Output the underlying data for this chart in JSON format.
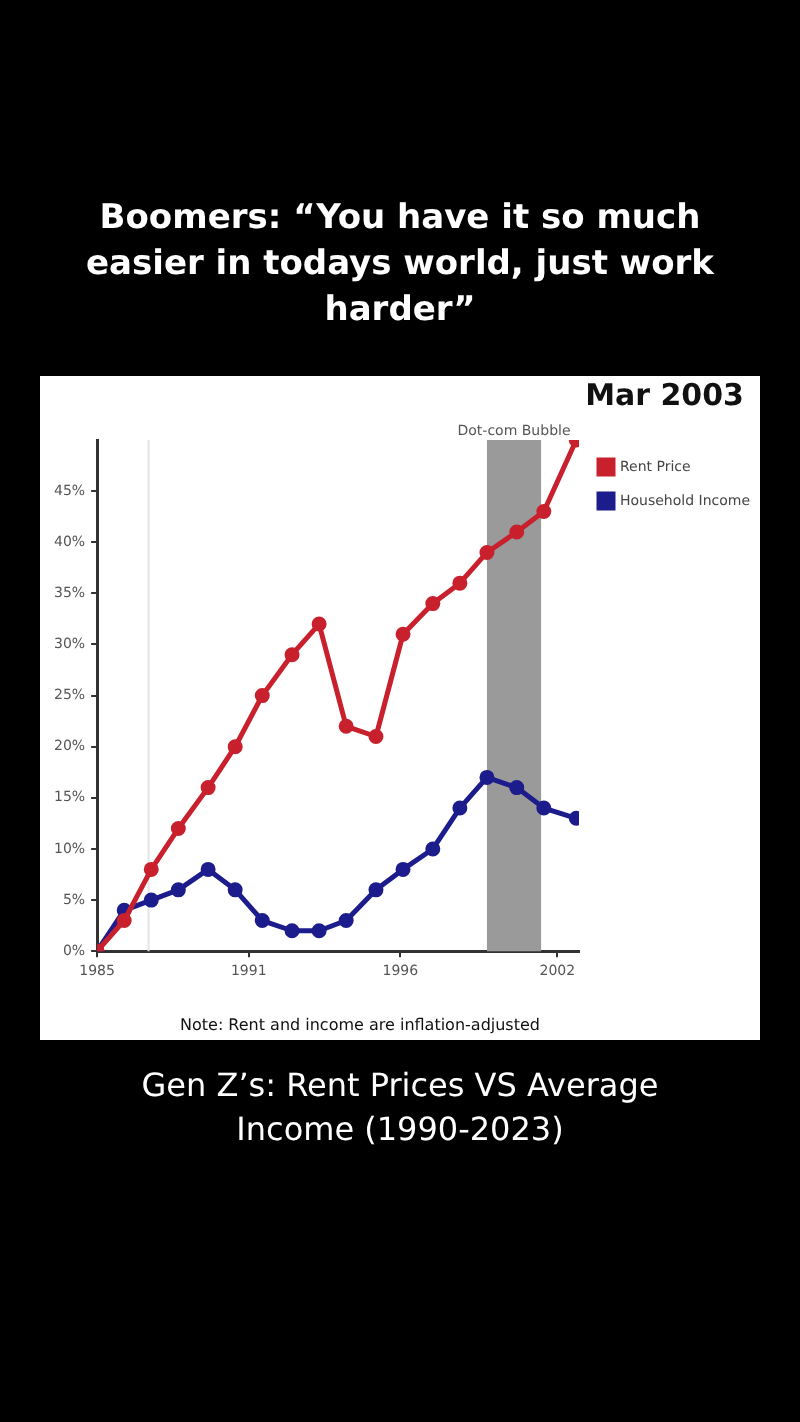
{
  "chart_data": {
    "type": "line",
    "title": "Boomers: “You have it so much easier in todays world, just work harder”",
    "subtitle": "Gen Z’s: Rent Prices VS Average Income (1990-2023)",
    "annotations": [
      "Mar 2003",
      "Note: Rent and income are inflation-adjusted"
    ],
    "x": [
      1985,
      1986,
      1987,
      1988,
      1989.1,
      1990.1,
      1991.1,
      1992.2,
      1993.2,
      1994.2,
      1995.3,
      1996.3,
      1997.4,
      1998.4,
      1999.4,
      2000.5,
      2001.5,
      2002.7
    ],
    "series": [
      {
        "name": "Rent Price",
        "color": "#c8202c",
        "values": [
          0,
          3,
          8,
          12,
          16,
          20,
          25,
          29,
          32,
          22,
          21,
          31,
          34,
          36,
          39,
          41,
          43,
          50
        ]
      },
      {
        "name": "Household Income",
        "color": "#1c1c8c",
        "values": [
          0,
          4,
          5,
          6,
          8,
          6,
          3,
          2,
          2,
          3,
          6,
          8,
          10,
          14,
          17,
          16,
          14,
          13
        ]
      }
    ],
    "xlim": [
      1985,
      2002.8
    ],
    "xticks": [
      {
        "value": 1985,
        "label": "1985"
      },
      {
        "value": 1990.6,
        "label": "1991"
      },
      {
        "value": 1996.2,
        "label": "1996"
      },
      {
        "value": 2002,
        "label": "2002"
      }
    ],
    "ylim": [
      0,
      50
    ],
    "yticks": [
      {
        "value": 0,
        "label": "0%"
      },
      {
        "value": 5,
        "label": "5%"
      },
      {
        "value": 10,
        "label": "10%"
      },
      {
        "value": 15,
        "label": "15%"
      },
      {
        "value": 20,
        "label": "20%"
      },
      {
        "value": 25,
        "label": "25%"
      },
      {
        "value": 30,
        "label": "30%"
      },
      {
        "value": 35,
        "label": "35%"
      },
      {
        "value": 40,
        "label": "40%"
      },
      {
        "value": 45,
        "label": "45%"
      }
    ],
    "bands": [
      {
        "axis": "x",
        "from": 1999.4,
        "to": 2001.4,
        "label": "Dot-com Bubble",
        "color": "#9a9a9a"
      }
    ],
    "ref_lines": [
      {
        "axis": "x",
        "value": 1986.9,
        "color": "#e4e4e4"
      }
    ],
    "grid": false,
    "legend": "top right",
    "marker": "circle",
    "line_style": "solid"
  }
}
